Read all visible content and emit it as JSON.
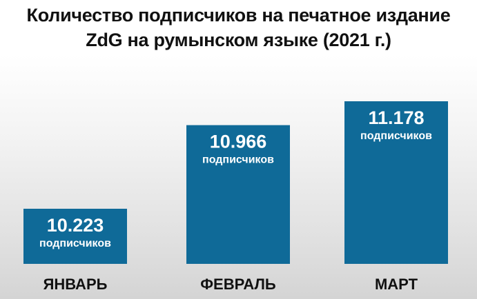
{
  "chart_data": {
    "type": "bar",
    "title": [
      "Количество подписчиков на печатное издание",
      "ZdG на румынском языке (2021 г.)"
    ],
    "categories": [
      "ЯНВАРЬ",
      "ФЕВРАЛЬ",
      "МАРТ"
    ],
    "values": [
      10223,
      10966,
      11178
    ],
    "value_labels": [
      "10.223",
      "10.966",
      "11.178"
    ],
    "unit_label": "подписчиков",
    "bar_color": "#0f6a98",
    "grid": false,
    "legend": "none"
  }
}
